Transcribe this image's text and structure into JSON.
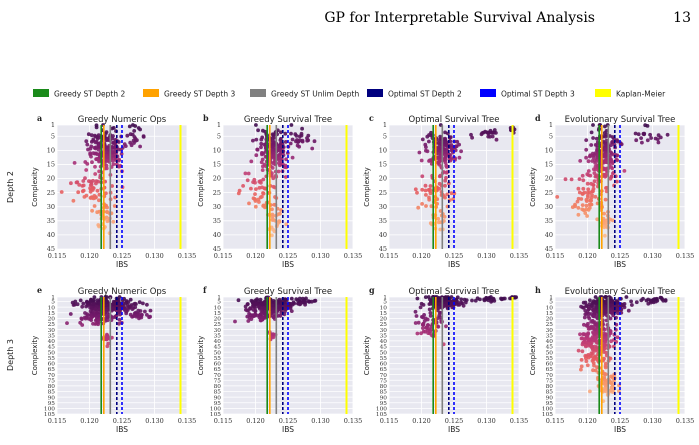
{
  "header": {
    "title": "GP for Interpretable Survival Analysis",
    "page_number": "13"
  },
  "colors": {
    "greedy_d2": "#1a8a1a",
    "greedy_d3": "#ffa200",
    "greedy_unlim": "#808080",
    "optimal_d2": "#00007f",
    "optimal_d3": "#0000ff",
    "kaplan_meier": "#ffff00",
    "panel_bg": "#e8e8f0",
    "grid": "#ffffff"
  },
  "chart_data": {
    "type": "scatter",
    "legend": {
      "placement": "top",
      "entries": [
        {
          "label": "Greedy ST Depth 2",
          "color": "#1a8a1a"
        },
        {
          "label": "Greedy ST Depth 3",
          "color": "#ffa200"
        },
        {
          "label": "Greedy ST Unlim Depth",
          "color": "#808080"
        },
        {
          "label": "Optimal ST Depth 2",
          "color": "#00007f"
        },
        {
          "label": "Optimal ST Depth 3",
          "color": "#0000ff"
        },
        {
          "label": "Kaplan-Meier",
          "color": "#ffff00"
        }
      ]
    },
    "reference_lines": [
      {
        "name": "Greedy ST Depth 2",
        "ibs": 0.1218,
        "color": "#1a8a1a",
        "style": "solid"
      },
      {
        "name": "Greedy ST Depth 3",
        "ibs": 0.1222,
        "color": "#ffa200",
        "style": "solid"
      },
      {
        "name": "Greedy ST Unlim Depth",
        "ibs": 0.1232,
        "color": "#808080",
        "style": "solid"
      },
      {
        "name": "Optimal ST Depth 2",
        "ibs": 0.1242,
        "color": "#00007f",
        "style": "dashed"
      },
      {
        "name": "Optimal ST Depth 3",
        "ibs": 0.125,
        "color": "#0000ff",
        "style": "dashed"
      },
      {
        "name": "Kaplan-Meier",
        "ibs": 0.134,
        "color": "#ffff00",
        "style": "solid"
      }
    ],
    "xlim": [
      0.115,
      0.135
    ],
    "xticks": [
      "0.115",
      "0.120",
      "0.125",
      "0.130",
      "0.135"
    ],
    "xlabel": "IBS",
    "ylabel": "Complexity",
    "grid": true,
    "rows": [
      {
        "row_label": "Depth 2",
        "ylim": [
          1,
          45
        ],
        "yticks": [
          "1",
          "5",
          "10",
          "15",
          "20",
          "25",
          "30",
          "35",
          "40",
          "45"
        ]
      },
      {
        "row_label": "Depth 3",
        "ylim": [
          1,
          105
        ],
        "yticks": [
          "1",
          "5",
          "10",
          "15",
          "20",
          "25",
          "30",
          "35",
          "40",
          "45",
          "50",
          "55",
          "60",
          "65",
          "70",
          "75",
          "80",
          "85",
          "90",
          "95",
          "100",
          "105"
        ]
      }
    ],
    "panels": [
      {
        "letter": "a",
        "title": "Greedy Numeric Ops",
        "row": 0,
        "col": 0,
        "clusters": [
          {
            "x": 0.1225,
            "y": 10,
            "sx": 0.0025,
            "sy": 7,
            "n": 190
          },
          {
            "x": 0.1205,
            "y": 24,
            "sx": 0.003,
            "sy": 6,
            "n": 60
          },
          {
            "x": 0.1225,
            "y": 33,
            "sx": 0.0012,
            "sy": 5,
            "n": 30
          },
          {
            "x": 0.127,
            "y": 5,
            "sx": 0.0015,
            "sy": 3,
            "n": 20
          }
        ]
      },
      {
        "letter": "b",
        "title": "Greedy Survival Tree",
        "row": 0,
        "col": 1,
        "clusters": [
          {
            "x": 0.1228,
            "y": 10,
            "sx": 0.0022,
            "sy": 7,
            "n": 180
          },
          {
            "x": 0.121,
            "y": 25,
            "sx": 0.0028,
            "sy": 6,
            "n": 55
          },
          {
            "x": 0.123,
            "y": 34,
            "sx": 0.001,
            "sy": 5,
            "n": 25
          },
          {
            "x": 0.1265,
            "y": 6,
            "sx": 0.002,
            "sy": 3,
            "n": 25
          }
        ]
      },
      {
        "letter": "c",
        "title": "Optimal Survival Tree",
        "row": 0,
        "col": 2,
        "clusters": [
          {
            "x": 0.1232,
            "y": 10,
            "sx": 0.0022,
            "sy": 6,
            "n": 170
          },
          {
            "x": 0.1218,
            "y": 24,
            "sx": 0.0025,
            "sy": 6,
            "n": 55
          },
          {
            "x": 0.1225,
            "y": 35,
            "sx": 0.001,
            "sy": 4,
            "n": 20
          },
          {
            "x": 0.13,
            "y": 4,
            "sx": 0.002,
            "sy": 2,
            "n": 20
          },
          {
            "x": 0.134,
            "y": 2,
            "sx": 0.0004,
            "sy": 1.5,
            "n": 8
          }
        ]
      },
      {
        "letter": "d",
        "title": "Evolutionary Survival Tree",
        "row": 0,
        "col": 3,
        "clusters": [
          {
            "x": 0.1225,
            "y": 12,
            "sx": 0.0022,
            "sy": 8,
            "n": 200
          },
          {
            "x": 0.1205,
            "y": 26,
            "sx": 0.0025,
            "sy": 6,
            "n": 70
          },
          {
            "x": 0.1228,
            "y": 35,
            "sx": 0.001,
            "sy": 4,
            "n": 25
          },
          {
            "x": 0.129,
            "y": 5,
            "sx": 0.0022,
            "sy": 3,
            "n": 20
          }
        ]
      },
      {
        "letter": "e",
        "title": "Greedy Numeric Ops",
        "row": 1,
        "col": 0,
        "clusters": [
          {
            "x": 0.1225,
            "y": 8,
            "sx": 0.0035,
            "sy": 6,
            "n": 230
          },
          {
            "x": 0.1215,
            "y": 20,
            "sx": 0.003,
            "sy": 6,
            "n": 70
          },
          {
            "x": 0.127,
            "y": 15,
            "sx": 0.002,
            "sy": 6,
            "n": 30
          },
          {
            "x": 0.1225,
            "y": 38,
            "sx": 0.0006,
            "sy": 6,
            "n": 15
          }
        ]
      },
      {
        "letter": "f",
        "title": "Greedy Survival Tree",
        "row": 1,
        "col": 1,
        "clusters": [
          {
            "x": 0.1225,
            "y": 8,
            "sx": 0.0028,
            "sy": 5,
            "n": 220
          },
          {
            "x": 0.1215,
            "y": 17,
            "sx": 0.0025,
            "sy": 5,
            "n": 70
          },
          {
            "x": 0.1275,
            "y": 5,
            "sx": 0.002,
            "sy": 3,
            "n": 25
          },
          {
            "x": 0.1225,
            "y": 35,
            "sx": 0.0006,
            "sy": 5,
            "n": 10
          }
        ]
      },
      {
        "letter": "g",
        "title": "Optimal Survival Tree",
        "row": 1,
        "col": 2,
        "clusters": [
          {
            "x": 0.1232,
            "y": 6,
            "sx": 0.0025,
            "sy": 5,
            "n": 150
          },
          {
            "x": 0.1215,
            "y": 25,
            "sx": 0.0022,
            "sy": 12,
            "n": 55
          },
          {
            "x": 0.13,
            "y": 3,
            "sx": 0.0025,
            "sy": 2,
            "n": 25
          },
          {
            "x": 0.134,
            "y": 1.5,
            "sx": 0.0004,
            "sy": 1,
            "n": 10
          }
        ]
      },
      {
        "letter": "h",
        "title": "Evolutionary Survival Tree",
        "row": 1,
        "col": 3,
        "clusters": [
          {
            "x": 0.1225,
            "y": 10,
            "sx": 0.0028,
            "sy": 8,
            "n": 220
          },
          {
            "x": 0.1215,
            "y": 40,
            "sx": 0.0022,
            "sy": 22,
            "n": 250
          },
          {
            "x": 0.1228,
            "y": 80,
            "sx": 0.0015,
            "sy": 10,
            "n": 60
          },
          {
            "x": 0.13,
            "y": 4,
            "sx": 0.0025,
            "sy": 3,
            "n": 25
          }
        ]
      }
    ]
  }
}
